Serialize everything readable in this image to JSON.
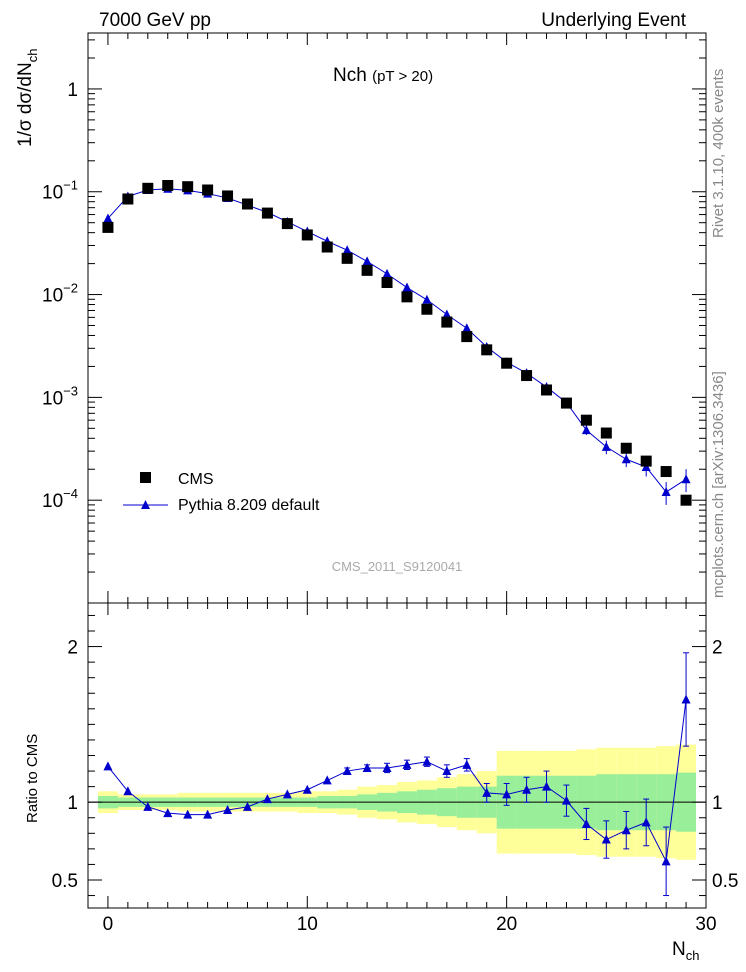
{
  "header": {
    "left": "7000 GeV pp",
    "right": "Underlying Event"
  },
  "side_labels": {
    "rivet": "Rivet 3.1.10,  400k events",
    "mcplots": "mcplots.cern.ch [arXiv:1306.3436]"
  },
  "colors": {
    "data": "#000000",
    "mc": "#0000cc",
    "band_inner": "#99ee99",
    "band_outer": "#ffff99"
  },
  "chart_data": [
    {
      "type": "scatter",
      "title": "Nch",
      "subtitle": "(pT > 20)",
      "ylabel": "1/σ dσ/dN",
      "ylabel_sub": "ch",
      "yscale": "log",
      "ylim": [
        1e-05,
        3.5
      ],
      "xlim": [
        -1,
        30
      ],
      "yticks": [
        {
          "v": 0.0001,
          "m": "10",
          "e": "−4"
        },
        {
          "v": 0.001,
          "m": "10",
          "e": "−3"
        },
        {
          "v": 0.01,
          "m": "10",
          "e": "−2"
        },
        {
          "v": 0.1,
          "m": "10",
          "e": "−1"
        },
        {
          "v": 1,
          "m": "1",
          "e": ""
        }
      ],
      "watermark": "CMS_2011_S9120041",
      "legend": {
        "position": "bottom-left",
        "entries": [
          "CMS",
          "Pythia 8.209 default"
        ]
      },
      "series": [
        {
          "name": "CMS",
          "marker": "square",
          "x": [
            0,
            1,
            2,
            3,
            4,
            5,
            6,
            7,
            8,
            9,
            10,
            11,
            12,
            13,
            14,
            15,
            16,
            17,
            18,
            19,
            20,
            21,
            22,
            23,
            24,
            25,
            26,
            27,
            28,
            29
          ],
          "y": [
            0.045,
            0.085,
            0.108,
            0.115,
            0.112,
            0.104,
            0.091,
            0.076,
            0.062,
            0.049,
            0.038,
            0.029,
            0.0225,
            0.0172,
            0.0131,
            0.0095,
            0.0072,
            0.0054,
            0.0039,
            0.0029,
            0.00215,
            0.00163,
            0.00118,
            0.00088,
            0.0006,
            0.00045,
            0.00032,
            0.00024,
            0.00019,
            0.0001
          ]
        },
        {
          "name": "Pythia 8.209 default",
          "marker": "triangle",
          "x": [
            0,
            1,
            2,
            3,
            4,
            5,
            6,
            7,
            8,
            9,
            10,
            11,
            12,
            13,
            14,
            15,
            16,
            17,
            18,
            19,
            20,
            21,
            22,
            23,
            24,
            25,
            26,
            27,
            28,
            29
          ],
          "y": [
            0.055,
            0.09,
            0.104,
            0.107,
            0.103,
            0.096,
            0.087,
            0.074,
            0.063,
            0.051,
            0.041,
            0.033,
            0.027,
            0.021,
            0.0159,
            0.0117,
            0.0089,
            0.0064,
            0.0047,
            0.0031,
            0.0022,
            0.00172,
            0.00126,
            0.00089,
            0.00048,
            0.00033,
            0.00025,
            0.00021,
            0.00012,
            0.00016
          ],
          "yerr": [
            0,
            0,
            0,
            0,
            0,
            0,
            0,
            0,
            0,
            0,
            0,
            0,
            0,
            0,
            0,
            0,
            0,
            0,
            0,
            0,
            0,
            0,
            0,
            0,
            5e-05,
            5e-05,
            4e-05,
            4e-05,
            3e-05,
            4e-05
          ]
        }
      ]
    },
    {
      "type": "line",
      "ylabel": "Ratio to CMS",
      "xlabel": "N",
      "xlabel_sub": "ch",
      "xlim": [
        -1,
        30
      ],
      "ylim": [
        0.32,
        2.28
      ],
      "xticks": [
        0,
        10,
        20,
        30
      ],
      "yticks": [
        0.5,
        1,
        2
      ],
      "reference_line": 1,
      "uncertainty_bands": {
        "x_edges": [
          -0.5,
          0.5,
          1.5,
          2.5,
          3.5,
          4.5,
          5.5,
          6.5,
          7.5,
          8.5,
          9.5,
          10.5,
          11.5,
          12.5,
          13.5,
          14.5,
          15.5,
          16.5,
          17.5,
          18.5,
          19.5,
          20.5,
          21.5,
          22.5,
          23.5,
          24.5,
          25.5,
          26.5,
          27.5,
          28.5,
          29.5
        ],
        "inner": [
          0.04,
          0.03,
          0.03,
          0.03,
          0.03,
          0.03,
          0.03,
          0.03,
          0.03,
          0.03,
          0.03,
          0.04,
          0.04,
          0.05,
          0.06,
          0.07,
          0.08,
          0.09,
          0.1,
          0.1,
          0.17,
          0.17,
          0.17,
          0.17,
          0.17,
          0.18,
          0.18,
          0.18,
          0.18,
          0.19
        ],
        "outer": [
          0.07,
          0.05,
          0.05,
          0.05,
          0.06,
          0.06,
          0.06,
          0.06,
          0.06,
          0.06,
          0.07,
          0.07,
          0.08,
          0.1,
          0.11,
          0.13,
          0.14,
          0.16,
          0.18,
          0.2,
          0.33,
          0.33,
          0.33,
          0.33,
          0.34,
          0.35,
          0.35,
          0.35,
          0.36,
          0.37
        ]
      },
      "series": [
        {
          "name": "Pythia 8.209 default",
          "x": [
            0,
            1,
            2,
            3,
            4,
            5,
            6,
            7,
            8,
            9,
            10,
            11,
            12,
            13,
            14,
            15,
            16,
            17,
            18,
            19,
            20,
            21,
            22,
            23,
            24,
            25,
            26,
            27,
            28,
            29
          ],
          "y": [
            1.23,
            1.07,
            0.97,
            0.93,
            0.92,
            0.92,
            0.95,
            0.97,
            1.02,
            1.05,
            1.08,
            1.14,
            1.2,
            1.22,
            1.22,
            1.24,
            1.26,
            1.2,
            1.24,
            1.06,
            1.05,
            1.08,
            1.1,
            1.01,
            0.86,
            0.76,
            0.82,
            0.87,
            0.62,
            1.66
          ],
          "yerr": [
            0,
            0,
            0,
            0,
            0,
            0,
            0,
            0,
            0,
            0,
            0,
            0,
            0.02,
            0.02,
            0.03,
            0.03,
            0.03,
            0.04,
            0.04,
            0.06,
            0.07,
            0.08,
            0.1,
            0.1,
            0.1,
            0.12,
            0.12,
            0.15,
            0.22,
            0.3
          ]
        }
      ]
    }
  ]
}
